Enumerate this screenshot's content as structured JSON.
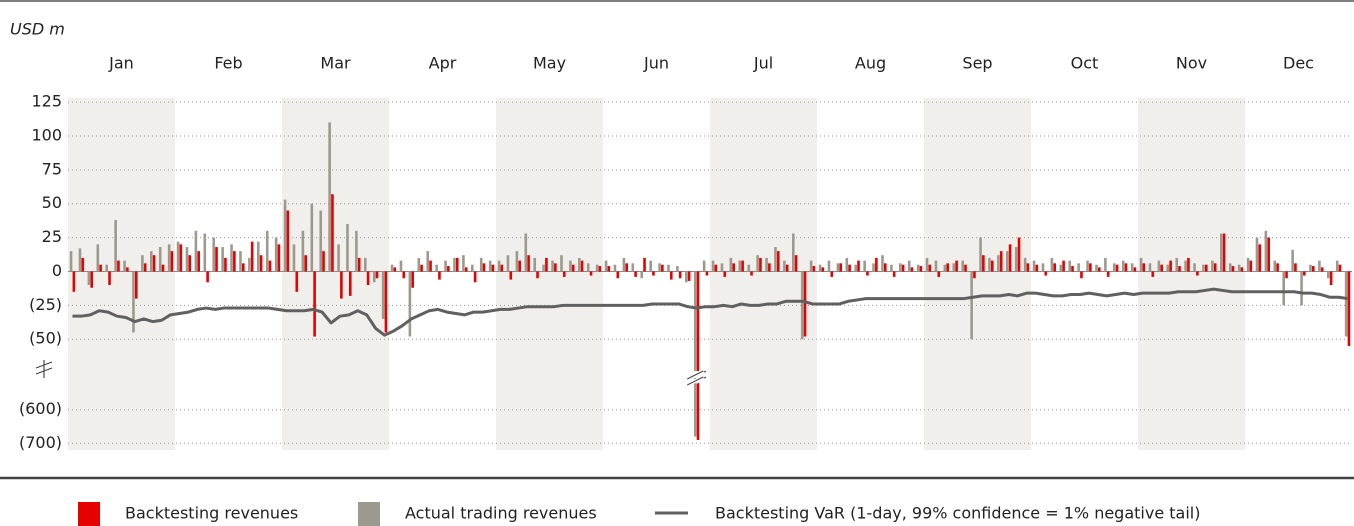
{
  "chart_data": {
    "type": "bar",
    "unit_label": "USD m",
    "categories": [
      "Jan",
      "Feb",
      "Mar",
      "Apr",
      "May",
      "Jun",
      "Jul",
      "Aug",
      "Sep",
      "Oct",
      "Nov",
      "Dec"
    ],
    "band_shading": true,
    "ylim": [
      -55,
      128
    ],
    "yticks": [
      125,
      100,
      75,
      50,
      25,
      0,
      {
        "value": -25,
        "label": "(25)"
      },
      {
        "value": -50,
        "label": "(50)"
      }
    ],
    "lower_ylim": [
      -720,
      -580
    ],
    "lower_yticks": [
      {
        "value": -600,
        "label": "(600)"
      },
      {
        "value": -700,
        "label": "(700)"
      }
    ],
    "grid": true,
    "series": [
      {
        "name": "Backtesting revenues",
        "color": "#e60000",
        "values": [
          [
            -15,
            10,
            -12,
            5,
            -10,
            8,
            3,
            -20,
            6,
            12,
            5,
            15
          ],
          [
            20,
            12,
            15,
            -8,
            18,
            10,
            15,
            6,
            22,
            12,
            8,
            20
          ],
          [
            45,
            -15,
            12,
            -48,
            15,
            57,
            -20,
            -18,
            10,
            -10,
            -5,
            -45
          ],
          [
            3,
            -5,
            -12,
            5,
            8,
            -6,
            4,
            10,
            3,
            -8,
            6,
            5
          ],
          [
            5,
            -6,
            8,
            12,
            -5,
            10,
            6,
            -4,
            5,
            8,
            -3,
            4
          ],
          [
            4,
            -5,
            6,
            -4,
            10,
            -3,
            5,
            -6,
            -5,
            -7,
            -690,
            -3
          ],
          [
            5,
            -4,
            6,
            8,
            -3,
            10,
            6,
            15,
            5,
            12,
            -48,
            4
          ],
          [
            3,
            -4,
            6,
            5,
            8,
            -3,
            10,
            6,
            -4,
            5,
            3,
            4
          ],
          [
            5,
            -4,
            6,
            8,
            5,
            -5,
            12,
            8,
            15,
            20,
            25,
            6
          ],
          [
            5,
            -3,
            6,
            8,
            4,
            -5,
            6,
            3,
            -4,
            5,
            6,
            3
          ],
          [
            6,
            -4,
            5,
            8,
            4,
            10,
            -3,
            5,
            6,
            28,
            4,
            3
          ],
          [
            8,
            20,
            25,
            6,
            -5,
            6,
            -3,
            4,
            3,
            -10,
            5,
            -55
          ]
        ]
      },
      {
        "name": "Actual trading revenues",
        "color": "#9c9a8e",
        "values": [
          [
            15,
            17,
            -10,
            20,
            5,
            38,
            8,
            -45,
            12,
            15,
            18,
            20
          ],
          [
            22,
            18,
            30,
            28,
            25,
            18,
            20,
            15,
            10,
            22,
            30,
            25
          ],
          [
            53,
            20,
            30,
            50,
            45,
            110,
            20,
            35,
            30,
            10,
            -8,
            -35
          ],
          [
            5,
            8,
            -48,
            10,
            15,
            5,
            8,
            10,
            12,
            5,
            10,
            8
          ],
          [
            8,
            12,
            15,
            28,
            10,
            5,
            8,
            12,
            8,
            10,
            6,
            5
          ],
          [
            8,
            5,
            10,
            6,
            -5,
            8,
            6,
            5,
            4,
            -8,
            -680,
            8
          ],
          [
            8,
            6,
            10,
            8,
            5,
            12,
            10,
            18,
            8,
            28,
            -50,
            8
          ],
          [
            5,
            8,
            6,
            10,
            5,
            8,
            6,
            12,
            5,
            6,
            8,
            5
          ],
          [
            10,
            8,
            5,
            6,
            8,
            -50,
            25,
            10,
            12,
            15,
            18,
            10
          ],
          [
            8,
            6,
            10,
            5,
            8,
            6,
            8,
            5,
            10,
            6,
            8,
            6
          ],
          [
            10,
            6,
            8,
            5,
            10,
            8,
            6,
            5,
            8,
            28,
            6,
            5
          ],
          [
            10,
            25,
            30,
            8,
            -25,
            16,
            -25,
            5,
            8,
            -5,
            8,
            -48
          ]
        ]
      },
      {
        "name": "Backtesting VaR (1-day, 99% confidence = 1% negative tail)",
        "color": "#606060",
        "type": "line",
        "values": [
          [
            -33,
            -33,
            -32,
            -29,
            -30,
            -33,
            -34,
            -37,
            -35,
            -37,
            -36,
            -32
          ],
          [
            -31,
            -30,
            -28,
            -27,
            -28,
            -27,
            -27,
            -27,
            -27,
            -27,
            -27,
            -28
          ],
          [
            -29,
            -29,
            -29,
            -28,
            -30,
            -38,
            -33,
            -32,
            -29,
            -32,
            -42,
            -47
          ],
          [
            -44,
            -40,
            -35,
            -32,
            -29,
            -28,
            -30,
            -31,
            -32,
            -30,
            -30,
            -29
          ],
          [
            -28,
            -28,
            -27,
            -26,
            -26,
            -26,
            -26,
            -25,
            -25,
            -25,
            -25,
            -25
          ],
          [
            -25,
            -25,
            -25,
            -25,
            -25,
            -24,
            -24,
            -24,
            -24,
            -26,
            -27,
            -26
          ],
          [
            -26,
            -25,
            -26,
            -24,
            -25,
            -25,
            -24,
            -24,
            -22,
            -22,
            -22,
            -24
          ],
          [
            -24,
            -24,
            -24,
            -22,
            -21,
            -20,
            -20,
            -20,
            -20,
            -20,
            -20,
            -20
          ],
          [
            -20,
            -20,
            -20,
            -20,
            -20,
            -19,
            -18,
            -18,
            -18,
            -17,
            -18,
            -16
          ],
          [
            -16,
            -17,
            -18,
            -18,
            -17,
            -17,
            -16,
            -17,
            -18,
            -17,
            -16,
            -17
          ],
          [
            -16,
            -16,
            -16,
            -16,
            -15,
            -15,
            -15,
            -14,
            -13,
            -14,
            -15,
            -15
          ],
          [
            -15,
            -15,
            -15,
            -15,
            -15,
            -15,
            -16,
            -16,
            -17,
            -19,
            -19,
            -20
          ]
        ]
      }
    ]
  }
}
